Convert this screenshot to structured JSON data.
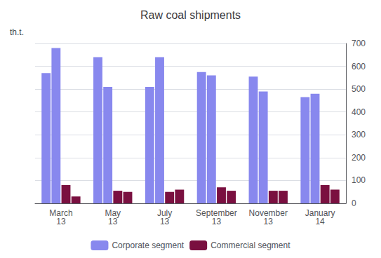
{
  "chart_data": {
    "type": "bar",
    "title": "Raw coal shipments",
    "ylabel": "th.t.",
    "categories": [
      "March\n13",
      "May\n13",
      "July\n13",
      "September\n13",
      "November\n13",
      "January\n14"
    ],
    "series": [
      {
        "name": "Corporate segment",
        "color": "#8888ee",
        "values": [
          570,
          640,
          510,
          575,
          555,
          465
        ]
      },
      {
        "name": "Corporate segment",
        "color": "#8888ee",
        "values": [
          680,
          510,
          640,
          560,
          490,
          480
        ]
      },
      {
        "name": "Commercial segment",
        "color": "#7a1040",
        "values": [
          80,
          55,
          50,
          70,
          55,
          80
        ]
      },
      {
        "name": "Commercial segment",
        "color": "#7a1040",
        "values": [
          30,
          50,
          60,
          55,
          55,
          60
        ]
      }
    ],
    "ylim": [
      0,
      700
    ],
    "yticks": [
      0,
      100,
      200,
      300,
      400,
      500,
      600,
      700
    ],
    "grid": true,
    "legend": "bottom"
  }
}
